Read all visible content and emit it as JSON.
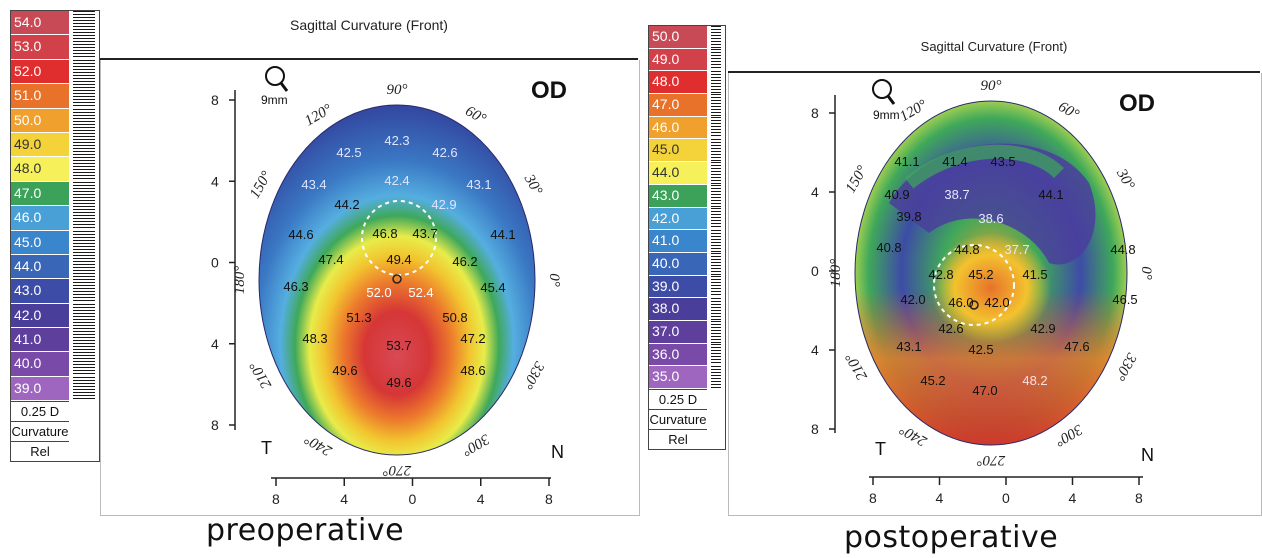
{
  "preoperative": {
    "title": "Sagittal Curvature (Front)",
    "caption": "preoperative",
    "eye": "OD",
    "zoom": "9mm",
    "nasal": "N",
    "temporal": "T",
    "scale_unit": "0.25 D",
    "scale_type": "Curvature",
    "scale_mode": "Rel",
    "scale": [
      {
        "v": "54.0",
        "c": "#c84a57"
      },
      {
        "v": "53.0",
        "c": "#d2414a"
      },
      {
        "v": "52.0",
        "c": "#e02d2d"
      },
      {
        "v": "51.0",
        "c": "#e8722a"
      },
      {
        "v": "50.0",
        "c": "#f0a02c"
      },
      {
        "v": "49.0",
        "c": "#f3d23a"
      },
      {
        "v": "48.0",
        "c": "#f6f05a"
      },
      {
        "v": "47.0",
        "c": "#3ca25a"
      },
      {
        "v": "46.0",
        "c": "#49a0d6"
      },
      {
        "v": "45.0",
        "c": "#3a86cc"
      },
      {
        "v": "44.0",
        "c": "#3a66b8"
      },
      {
        "v": "43.0",
        "c": "#3d4ca6"
      },
      {
        "v": "42.0",
        "c": "#493e9a"
      },
      {
        "v": "41.0",
        "c": "#5e3f9c"
      },
      {
        "v": "40.0",
        "c": "#7a4aa8"
      },
      {
        "v": "39.0",
        "c": "#9f66c0"
      }
    ],
    "y_ticks": [
      "8",
      "4",
      "0",
      "4",
      "8"
    ],
    "x_ticks": [
      "8",
      "4",
      "0",
      "4",
      "8"
    ],
    "degrees": [
      "90°",
      "60°",
      "30°",
      "0°",
      "330°",
      "300°",
      "270°",
      "240°",
      "210°",
      "180°",
      "150°",
      "120°"
    ],
    "values": [
      "42.3",
      "42.5",
      "42.6",
      "43.4",
      "42.4",
      "43.1",
      "44.2",
      "42.9",
      "44.6",
      "46.8",
      "43.7",
      "44.1",
      "47.4",
      "49.4",
      "46.2",
      "46.3",
      "52.0",
      "52.4",
      "45.4",
      "51.3",
      "50.8",
      "48.3",
      "53.7",
      "47.2",
      "49.6",
      "49.6",
      "48.6"
    ]
  },
  "postoperative": {
    "title": "Sagittal Curvature (Front)",
    "caption": "postoperative",
    "eye": "OD",
    "zoom": "9mm",
    "nasal": "N",
    "temporal": "T",
    "scale_unit": "0.25 D",
    "scale_type": "Curvature",
    "scale_mode": "Rel",
    "scale": [
      {
        "v": "50.0",
        "c": "#c84a57"
      },
      {
        "v": "49.0",
        "c": "#d2414a"
      },
      {
        "v": "48.0",
        "c": "#e02d2d"
      },
      {
        "v": "47.0",
        "c": "#e8722a"
      },
      {
        "v": "46.0",
        "c": "#f0a02c"
      },
      {
        "v": "45.0",
        "c": "#f3d23a"
      },
      {
        "v": "44.0",
        "c": "#f6f05a"
      },
      {
        "v": "43.0",
        "c": "#3ca25a"
      },
      {
        "v": "42.0",
        "c": "#49a0d6"
      },
      {
        "v": "41.0",
        "c": "#3a86cc"
      },
      {
        "v": "40.0",
        "c": "#3a66b8"
      },
      {
        "v": "39.0",
        "c": "#3d4ca6"
      },
      {
        "v": "38.0",
        "c": "#493e9a"
      },
      {
        "v": "37.0",
        "c": "#5e3f9c"
      },
      {
        "v": "36.0",
        "c": "#7a4aa8"
      },
      {
        "v": "35.0",
        "c": "#9f66c0"
      }
    ],
    "y_ticks": [
      "8",
      "4",
      "0",
      "4",
      "8"
    ],
    "x_ticks": [
      "8",
      "4",
      "0",
      "4",
      "8"
    ],
    "degrees": [
      "90°",
      "60°",
      "30°",
      "0°",
      "330°",
      "300°",
      "270°",
      "240°",
      "210°",
      "180°",
      "150°",
      "120°"
    ],
    "values": [
      "41.1",
      "41.4",
      "43.5",
      "40.9",
      "38.7",
      "44.1",
      "39.8",
      "38.6",
      "40.8",
      "44.8",
      "37.7",
      "44.8",
      "42.8",
      "45.2",
      "41.5",
      "42.0",
      "46.0",
      "42.0",
      "46.5",
      "42.6",
      "42.9",
      "43.1",
      "42.5",
      "47.6",
      "45.2",
      "47.0",
      "48.2"
    ]
  }
}
